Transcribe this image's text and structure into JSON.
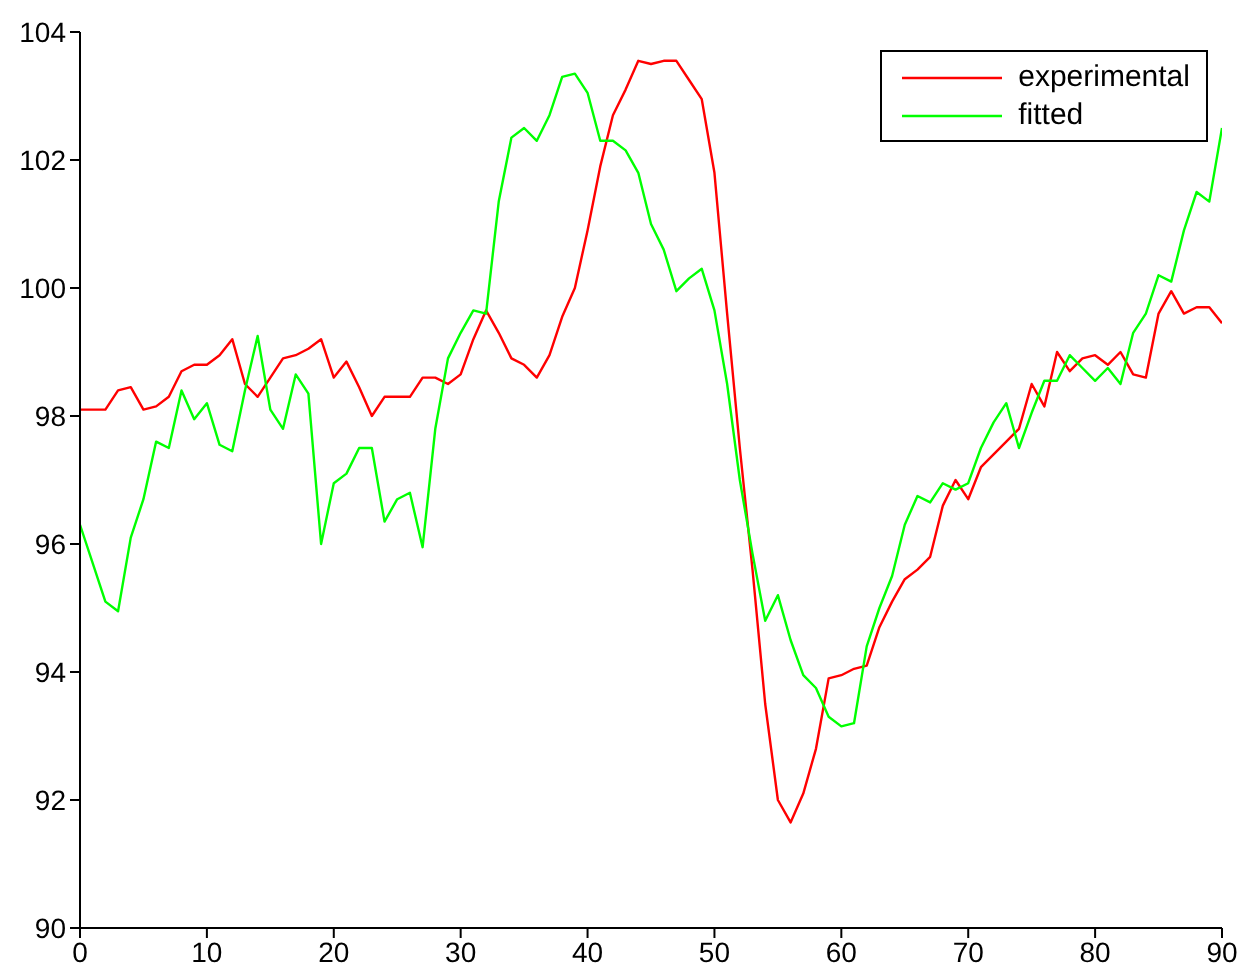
{
  "chart_data": {
    "type": "line",
    "x": [
      0,
      1,
      2,
      3,
      4,
      5,
      6,
      7,
      8,
      9,
      10,
      11,
      12,
      13,
      14,
      15,
      16,
      17,
      18,
      19,
      20,
      21,
      22,
      23,
      24,
      25,
      26,
      27,
      28,
      29,
      30,
      31,
      32,
      33,
      34,
      35,
      36,
      37,
      38,
      39,
      40,
      41,
      42,
      43,
      44,
      45,
      46,
      47,
      48,
      49,
      50,
      51,
      52,
      53,
      54,
      55,
      56,
      57,
      58,
      59,
      60,
      61,
      62,
      63,
      64,
      65,
      66,
      67,
      68,
      69,
      70,
      71,
      72,
      73,
      74,
      75,
      76,
      77,
      78,
      79,
      80,
      81,
      82,
      83,
      84,
      85,
      86,
      87,
      88,
      89,
      90
    ],
    "series": [
      {
        "name": "experimental",
        "color": "#ff0000",
        "values": [
          98.1,
          98.1,
          98.1,
          98.4,
          98.45,
          98.1,
          98.15,
          98.3,
          98.7,
          98.8,
          98.8,
          98.95,
          99.2,
          98.5,
          98.3,
          98.6,
          98.9,
          98.95,
          99.05,
          99.2,
          98.6,
          98.85,
          98.45,
          98.0,
          98.3,
          98.3,
          98.3,
          98.6,
          98.6,
          98.5,
          98.65,
          99.2,
          99.65,
          99.3,
          98.9,
          98.8,
          98.6,
          98.95,
          99.55,
          100.0,
          100.9,
          101.9,
          102.7,
          103.1,
          103.55,
          103.5,
          103.55,
          103.55,
          103.25,
          102.95,
          101.8,
          99.6,
          97.5,
          95.6,
          93.5,
          92.0,
          91.65,
          92.1,
          92.8,
          93.9,
          93.95,
          94.05,
          94.1,
          94.7,
          95.1,
          95.45,
          95.6,
          95.8,
          96.6,
          97.0,
          96.7,
          97.2,
          97.4,
          97.6,
          97.8,
          98.5,
          98.15,
          99.0,
          98.7,
          98.9,
          98.95,
          98.8,
          99.0,
          98.65,
          98.6,
          99.6,
          99.95,
          99.6,
          99.7,
          99.7,
          99.45
        ]
      },
      {
        "name": "fitted",
        "color": "#00ff00",
        "values": [
          96.3,
          95.7,
          95.1,
          94.95,
          96.1,
          96.7,
          97.6,
          97.5,
          98.4,
          97.95,
          98.2,
          97.55,
          97.45,
          98.4,
          99.25,
          98.1,
          97.8,
          98.65,
          98.35,
          96.0,
          96.95,
          97.1,
          97.5,
          97.5,
          96.35,
          96.7,
          96.8,
          95.95,
          97.8,
          98.9,
          99.3,
          99.65,
          99.6,
          101.35,
          102.35,
          102.5,
          102.3,
          102.7,
          103.3,
          103.35,
          103.05,
          102.3,
          102.3,
          102.15,
          101.8,
          101.0,
          100.6,
          99.95,
          100.15,
          100.3,
          99.65,
          98.5,
          97.0,
          95.85,
          94.8,
          95.2,
          94.5,
          93.95,
          93.75,
          93.3,
          93.15,
          93.2,
          94.4,
          95.0,
          95.5,
          96.3,
          96.75,
          96.65,
          96.95,
          96.85,
          96.95,
          97.5,
          97.9,
          98.2,
          97.5,
          98.05,
          98.55,
          98.55,
          98.95,
          98.75,
          98.55,
          98.75,
          98.5,
          99.3,
          99.6,
          100.2,
          100.1,
          100.9,
          101.5,
          101.35,
          102.5
        ]
      }
    ],
    "xlim": [
      0,
      90
    ],
    "xticks": [
      0,
      10,
      20,
      30,
      40,
      50,
      60,
      70,
      80,
      90
    ],
    "ylim": [
      90,
      104
    ],
    "yticks": [
      90,
      92,
      94,
      96,
      98,
      100,
      102,
      104
    ],
    "grid": false,
    "legend": "top right",
    "marker": "none",
    "line_style": "solid"
  }
}
